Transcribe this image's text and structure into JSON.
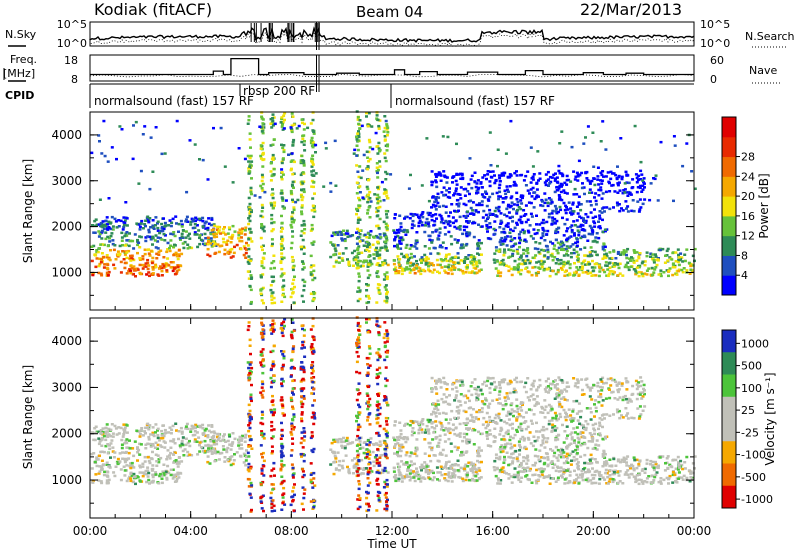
{
  "header": {
    "station": "Kodiak (fitACF)",
    "beam": "Beam 04",
    "date": "22/Mar/2013"
  },
  "noise_panel": {
    "left_label": "N.Sky",
    "right_label": "N.Search",
    "left_ticks": [
      "10^5",
      "10^0"
    ],
    "right_ticks": [
      "10^5",
      "10^0"
    ]
  },
  "freq_panel": {
    "left_label_line1": "Freq.",
    "left_label_line2": "[MHz]",
    "right_label": "Nave",
    "left_ticks": [
      "18",
      "8"
    ],
    "right_ticks": [
      "60",
      "0"
    ],
    "freq_steps": [
      [
        0.0,
        10.5
      ],
      [
        4.9,
        11.8
      ],
      [
        5.3,
        10.5
      ],
      [
        5.6,
        16.6
      ],
      [
        6.7,
        10.5
      ],
      [
        7.1,
        11.2
      ],
      [
        8.5,
        10.5
      ],
      [
        9.8,
        11.0
      ],
      [
        10.7,
        10.5
      ],
      [
        12.1,
        12.3
      ],
      [
        12.5,
        10.5
      ],
      [
        13.1,
        11.6
      ],
      [
        13.8,
        10.5
      ],
      [
        15.0,
        11.4
      ],
      [
        16.2,
        10.5
      ],
      [
        17.3,
        12.0
      ],
      [
        18.0,
        10.5
      ],
      [
        19.6,
        11.2
      ],
      [
        20.4,
        10.5
      ],
      [
        21.3,
        11.0
      ],
      [
        22.0,
        10.5
      ],
      [
        24.0,
        10.5
      ]
    ]
  },
  "cpid": {
    "label": "CPID",
    "segments": [
      {
        "text": "normalsound (fast) 157 RF"
      },
      {
        "text": "rbsp 200 RF"
      },
      {
        "text": "normalsound (fast) 157 RF"
      }
    ]
  },
  "power_panel": {
    "ylabel": "Slant Range [km]",
    "yticks": [
      "1000",
      "2000",
      "3000",
      "4000"
    ],
    "colorbar_label": "Power [dB]",
    "colorbar_ticks": [
      "4",
      "8",
      "12",
      "16",
      "20",
      "24",
      "28"
    ],
    "colors": [
      "#0000ff",
      "#1f4fbf",
      "#2e8b57",
      "#66c23a",
      "#f2e20a",
      "#f5a800",
      "#f06a00",
      "#e82a00",
      "#e00000"
    ]
  },
  "velocity_panel": {
    "ylabel": "Slant Range [km]",
    "yticks": [
      "1000",
      "2000",
      "3000",
      "4000"
    ],
    "colorbar_label": "Velocity [m s⁻¹]",
    "colorbar_ticks": [
      "1000",
      "500",
      "100",
      "25",
      "-25",
      "-100",
      "-500",
      "-1000"
    ],
    "colors": [
      "#1a2dbf",
      "#2e8b57",
      "#4cc43a",
      "#c0c0b8",
      "#c0c0b8",
      "#f5a800",
      "#f06a00",
      "#e00000"
    ]
  },
  "x_axis": {
    "label": "Time UT",
    "ticks": [
      "00:00",
      "04:00",
      "08:00",
      "12:00",
      "16:00",
      "20:00",
      "00:00"
    ]
  }
}
